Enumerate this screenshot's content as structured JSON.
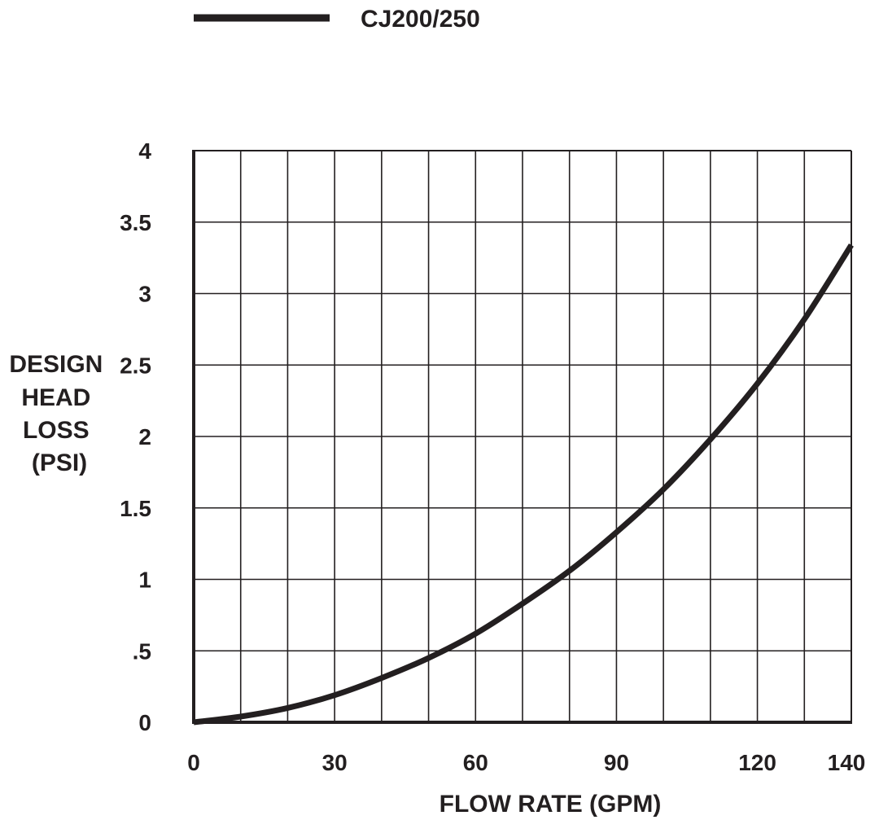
{
  "chart_data": {
    "type": "line",
    "title": "",
    "xlabel": "FLOW RATE (GPM)",
    "ylabel_lines": [
      "DESIGN",
      "HEAD",
      "LOSS",
      "(PSI)"
    ],
    "xlim": [
      0,
      140
    ],
    "ylim": [
      0,
      4
    ],
    "x_ticks": [
      0,
      30,
      60,
      90,
      120,
      140
    ],
    "x_tick_labels": [
      "0",
      "30",
      "60",
      "90",
      "120",
      "140"
    ],
    "y_ticks": [
      0,
      0.5,
      1,
      1.5,
      2,
      2.5,
      3,
      3.5,
      4
    ],
    "y_tick_labels": [
      "0",
      ".5",
      "1",
      "1.5",
      "2",
      "2.5",
      "3",
      "3.5",
      "4"
    ],
    "grid": true,
    "x_grid_step": 10,
    "y_grid_step": 0.5,
    "legend_position": "top-left",
    "line_color": "#231f20",
    "series": [
      {
        "name": "CJ200/250",
        "x": [
          0,
          10,
          20,
          30,
          40,
          50,
          60,
          70,
          80,
          90,
          100,
          110,
          120,
          130,
          140
        ],
        "y": [
          0,
          0.04,
          0.1,
          0.19,
          0.31,
          0.45,
          0.62,
          0.83,
          1.06,
          1.33,
          1.63,
          1.98,
          2.37,
          2.82,
          3.34
        ]
      }
    ]
  }
}
